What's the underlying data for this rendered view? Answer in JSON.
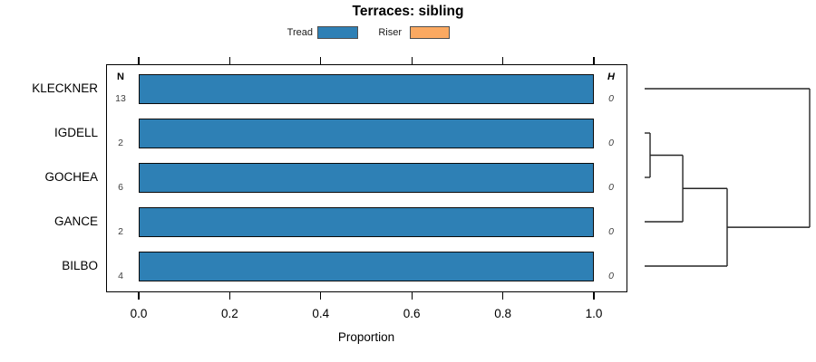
{
  "title": "Terraces: sibling",
  "chart_data": {
    "type": "bar",
    "orientation": "horizontal",
    "title": "Terraces: sibling",
    "xlabel": "Proportion",
    "xlim": [
      0,
      1
    ],
    "x_ticks": [
      "0.0",
      "0.2",
      "0.4",
      "0.6",
      "0.8",
      "1.0"
    ],
    "x_tick_values": [
      0,
      0.2,
      0.4,
      0.6,
      0.8,
      1.0
    ],
    "categories": [
      "KLECKNER",
      "IGDELL",
      "GOCHEA",
      "GANCE",
      "BILBO"
    ],
    "columns": {
      "n_header": "N",
      "h_header": "H"
    },
    "rows": [
      {
        "label": "KLECKNER",
        "n": "13",
        "value": 1.0,
        "h": "0"
      },
      {
        "label": "IGDELL",
        "n": "2",
        "value": 1.0,
        "h": "0"
      },
      {
        "label": "GOCHEA",
        "n": "6",
        "value": 1.0,
        "h": "0"
      },
      {
        "label": "GANCE",
        "n": "2",
        "value": 1.0,
        "h": "0"
      },
      {
        "label": "BILBO",
        "n": "4",
        "value": 1.0,
        "h": "0"
      }
    ],
    "series": [
      {
        "name": "Tread",
        "values": [
          1.0,
          1.0,
          1.0,
          1.0,
          1.0
        ]
      },
      {
        "name": "Riser",
        "values": [
          0,
          0,
          0,
          0,
          0
        ]
      }
    ],
    "legend": [
      {
        "label": "Tread",
        "color": "#2E80B5"
      },
      {
        "label": "Riser",
        "color": "#FBA961"
      }
    ],
    "colors": {
      "bar_fill": "#2E80B5",
      "bar_border": "#0a0a0a",
      "riser_fill": "#FBA961",
      "value_text": "#3f3f3f",
      "dendrogram_line": "#262626",
      "legend_border": "#4f4f4f"
    },
    "grid": false,
    "legend_position": "top",
    "dendrogram": {
      "leaves": [
        "KLECKNER",
        "IGDELL",
        "GOCHEA",
        "GANCE",
        "BILBO"
      ],
      "merges": [
        {
          "children": [
            "IGDELL",
            "GOCHEA"
          ],
          "height": 0.033
        },
        {
          "children": [
            "merge0",
            "GANCE"
          ],
          "height": 0.231
        },
        {
          "children": [
            "merge1",
            "BILBO"
          ],
          "height": 0.5
        },
        {
          "children": [
            "merge2",
            "KLECKNER"
          ],
          "height": 1.0
        }
      ]
    }
  }
}
